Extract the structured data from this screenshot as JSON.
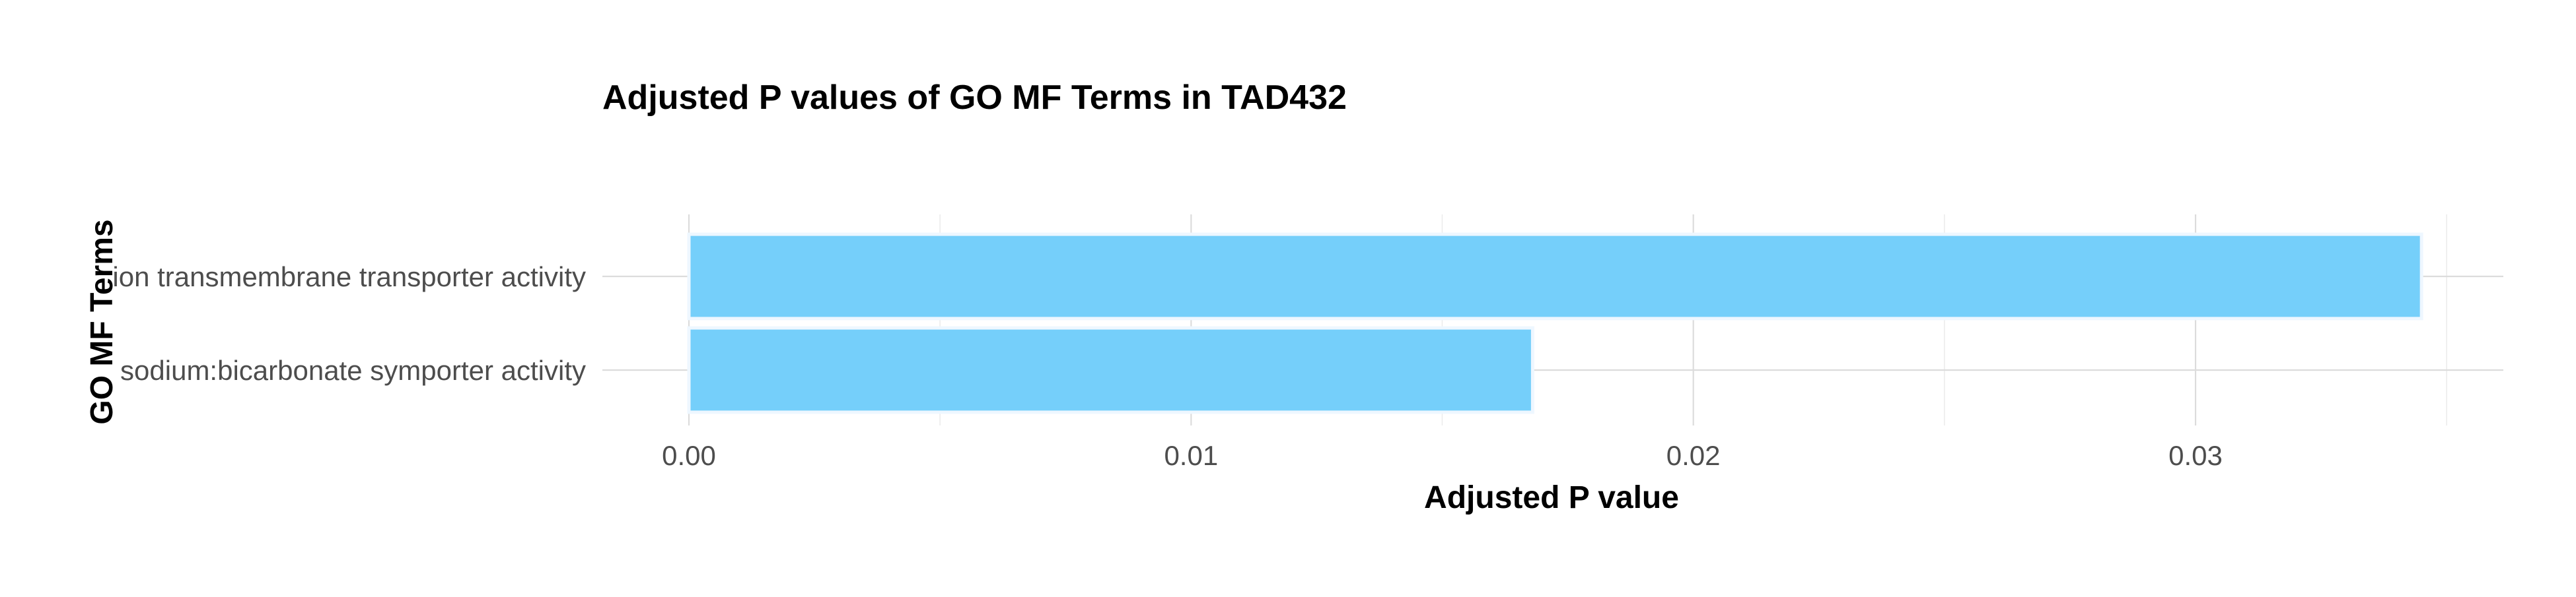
{
  "chart_data": {
    "type": "bar",
    "orientation": "horizontal",
    "title": "Adjusted P values of GO MF Terms in TAD432",
    "xlabel": "Adjusted P value",
    "ylabel": "GO MF Terms",
    "categories": [
      "ion transmembrane transporter activity",
      "sodium:bicarbonate symporter activity"
    ],
    "values": [
      0.0345,
      0.0168
    ],
    "xlim": [
      0,
      0.0363
    ],
    "xticks": [
      0.0,
      0.01,
      0.02,
      0.03
    ],
    "xtick_labels": [
      "0.00",
      "0.01",
      "0.02",
      "0.03"
    ],
    "bar_color": "#75cffa",
    "bar_edge_color": "#eef7ff",
    "grid": true,
    "legend": "none"
  }
}
